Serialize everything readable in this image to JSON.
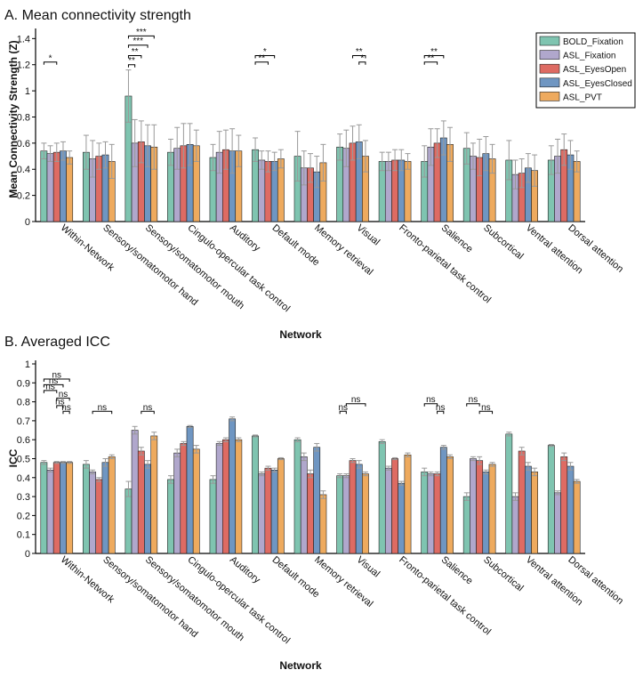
{
  "chart_data": [
    {
      "type": "bar",
      "title": "A. Mean connectivity strength",
      "xlabel": "Network",
      "ylabel": "Mean Connectivity Strength (Z)",
      "ylim": [
        0,
        1.45
      ],
      "yticks": [
        0,
        0.2,
        0.4,
        0.6,
        0.8,
        1,
        1.2,
        1.4
      ],
      "ytick_labels": [
        "0",
        "0.2",
        "0.4",
        "0.6",
        "0.8",
        "1",
        "1.2",
        "1.4"
      ],
      "legend_position": "top-right",
      "categories": [
        "Within-Network",
        "Sensory/somatomotor hand",
        "Sensory/somatomotor mouth",
        "Cingulo-opercular task control",
        "Auditory",
        "Default mode",
        "Memory retrieval",
        "Visual",
        "Fronto-parietal task control",
        "Salience",
        "Subcortical",
        "Ventral attention",
        "Dorsal attention"
      ],
      "series": [
        {
          "name": "BOLD_Fixation",
          "color": "#7fc4b0",
          "values": [
            0.54,
            0.53,
            0.96,
            0.53,
            0.49,
            0.55,
            0.5,
            0.57,
            0.46,
            0.46,
            0.56,
            0.47,
            0.47
          ],
          "errors": [
            0.06,
            0.13,
            0.2,
            0.1,
            0.1,
            0.09,
            0.19,
            0.1,
            0.07,
            0.12,
            0.12,
            0.15,
            0.11
          ]
        },
        {
          "name": "ASL_Fixation",
          "color": "#b0a7cc",
          "values": [
            0.52,
            0.48,
            0.6,
            0.56,
            0.53,
            0.47,
            0.41,
            0.56,
            0.46,
            0.57,
            0.5,
            0.36,
            0.5
          ],
          "errors": [
            0.06,
            0.14,
            0.18,
            0.16,
            0.16,
            0.07,
            0.13,
            0.14,
            0.07,
            0.14,
            0.1,
            0.11,
            0.13
          ]
        },
        {
          "name": "ASL_EyesOpen",
          "color": "#de6b63",
          "values": [
            0.53,
            0.5,
            0.61,
            0.58,
            0.55,
            0.46,
            0.41,
            0.6,
            0.47,
            0.6,
            0.49,
            0.37,
            0.55
          ],
          "errors": [
            0.07,
            0.1,
            0.16,
            0.17,
            0.15,
            0.08,
            0.11,
            0.13,
            0.08,
            0.11,
            0.14,
            0.11,
            0.12
          ]
        },
        {
          "name": "ASL_EyesClosed",
          "color": "#6f96c2",
          "values": [
            0.54,
            0.51,
            0.58,
            0.59,
            0.54,
            0.46,
            0.38,
            0.61,
            0.47,
            0.64,
            0.52,
            0.41,
            0.51
          ],
          "errors": [
            0.07,
            0.1,
            0.16,
            0.16,
            0.17,
            0.07,
            0.12,
            0.13,
            0.08,
            0.13,
            0.13,
            0.11,
            0.11
          ]
        },
        {
          "name": "ASL_PVT",
          "color": "#eeaa5e",
          "values": [
            0.49,
            0.46,
            0.57,
            0.58,
            0.54,
            0.48,
            0.45,
            0.5,
            0.46,
            0.59,
            0.48,
            0.39,
            0.46
          ],
          "errors": [
            0.05,
            0.13,
            0.17,
            0.12,
            0.12,
            0.07,
            0.14,
            0.12,
            0.06,
            0.13,
            0.11,
            0.12,
            0.08
          ]
        }
      ],
      "annotations": [
        {
          "label": "*",
          "category": 0,
          "from_series": 0,
          "to_series": 2,
          "level": 1.22
        },
        {
          "label": "***",
          "category": 2,
          "from_series": 0,
          "to_series": 4,
          "level": 1.42
        },
        {
          "label": "***",
          "category": 2,
          "from_series": 0,
          "to_series": 3,
          "level": 1.35
        },
        {
          "label": "**",
          "category": 2,
          "from_series": 0,
          "to_series": 2,
          "level": 1.27
        },
        {
          "label": "**",
          "category": 2,
          "from_series": 0,
          "to_series": 1,
          "level": 1.2
        },
        {
          "label": "*",
          "category": 5,
          "from_series": 0,
          "to_series": 3,
          "level": 1.27
        },
        {
          "label": "**",
          "category": 5,
          "from_series": 0,
          "to_series": 2,
          "level": 1.22
        },
        {
          "label": "**",
          "category": 7,
          "from_series": 2,
          "to_series": 4,
          "level": 1.27
        },
        {
          "label": "*",
          "category": 7,
          "from_series": 3,
          "to_series": 4,
          "level": 1.22
        },
        {
          "label": "**",
          "category": 9,
          "from_series": 0,
          "to_series": 3,
          "level": 1.27
        },
        {
          "label": "**",
          "category": 9,
          "from_series": 0,
          "to_series": 2,
          "level": 1.22
        }
      ]
    },
    {
      "type": "bar",
      "title": "B. Averaged ICC",
      "xlabel": "Network",
      "ylabel": "ICC",
      "ylim": [
        0,
        1.0
      ],
      "yticks": [
        0,
        0.1,
        0.2,
        0.3,
        0.4,
        0.5,
        0.6,
        0.7,
        0.8,
        0.9,
        1
      ],
      "ytick_labels": [
        "0",
        "0.1",
        "0.2",
        "0.3",
        "0.4",
        "0.5",
        "0.6",
        "0.7",
        "0.8",
        "0.9",
        "1"
      ],
      "categories": [
        "Within-Network",
        "Sensory/somatomotor hand",
        "Sensory/somatomotor mouth",
        "Cingulo-opercular task control",
        "Auditory",
        "Default mode",
        "Memory retrieval",
        "Visual",
        "Fronto-parietal task control",
        "Salience",
        "Subcortical",
        "Ventral attention",
        "Dorsal attention"
      ],
      "series": [
        {
          "name": "BOLD_Fixation",
          "values": [
            0.48,
            0.47,
            0.34,
            0.39,
            0.39,
            0.62,
            0.6,
            0.41,
            0.59,
            0.43,
            0.3,
            0.63,
            0.57
          ],
          "errors": [
            0.01,
            0.02,
            0.04,
            0.02,
            0.02,
            0.005,
            0.01,
            0.01,
            0.01,
            0.02,
            0.02,
            0.01,
            0.005
          ]
        },
        {
          "name": "ASL_Fixation",
          "values": [
            0.44,
            0.43,
            0.65,
            0.53,
            0.58,
            0.42,
            0.51,
            0.41,
            0.45,
            0.42,
            0.5,
            0.3,
            0.32
          ],
          "errors": [
            0.01,
            0.01,
            0.02,
            0.02,
            0.01,
            0.01,
            0.02,
            0.01,
            0.01,
            0.01,
            0.01,
            0.02,
            0.01
          ]
        },
        {
          "name": "ASL_EyesOpen",
          "values": [
            0.48,
            0.39,
            0.54,
            0.58,
            0.6,
            0.45,
            0.42,
            0.49,
            0.5,
            0.42,
            0.49,
            0.54,
            0.51
          ],
          "errors": [
            0.005,
            0.01,
            0.02,
            0.01,
            0.01,
            0.01,
            0.02,
            0.01,
            0.005,
            0.01,
            0.02,
            0.02,
            0.02
          ]
        },
        {
          "name": "ASL_EyesClosed",
          "values": [
            0.48,
            0.48,
            0.47,
            0.67,
            0.71,
            0.44,
            0.56,
            0.47,
            0.37,
            0.56,
            0.43,
            0.46,
            0.46
          ],
          "errors": [
            0.005,
            0.02,
            0.02,
            0.005,
            0.01,
            0.01,
            0.02,
            0.02,
            0.01,
            0.01,
            0.01,
            0.02,
            0.02
          ]
        },
        {
          "name": "ASL_PVT",
          "values": [
            0.48,
            0.51,
            0.62,
            0.55,
            0.6,
            0.5,
            0.31,
            0.42,
            0.52,
            0.51,
            0.47,
            0.43,
            0.38
          ],
          "errors": [
            0.005,
            0.01,
            0.02,
            0.02,
            0.01,
            0.005,
            0.02,
            0.01,
            0.01,
            0.01,
            0.01,
            0.02,
            0.01
          ]
        }
      ],
      "annotations": [
        {
          "label": "ns",
          "category": 0,
          "from_series": 0,
          "to_series": 4,
          "level": 0.92
        },
        {
          "label": "ns",
          "category": 0,
          "from_series": 0,
          "to_series": 3,
          "level": 0.89
        },
        {
          "label": "ns",
          "category": 0,
          "from_series": 0,
          "to_series": 2,
          "level": 0.86
        },
        {
          "label": "ns",
          "category": 0,
          "from_series": 2,
          "to_series": 4,
          "level": 0.82
        },
        {
          "label": "ns",
          "category": 0,
          "from_series": 2,
          "to_series": 3,
          "level": 0.78
        },
        {
          "label": "ns",
          "category": 0,
          "from_series": 3,
          "to_series": 4,
          "level": 0.75
        },
        {
          "label": "ns",
          "category": 1,
          "from_series": 1,
          "to_series": 4,
          "level": 0.75
        },
        {
          "label": "ns",
          "category": 2,
          "from_series": 2,
          "to_series": 4,
          "level": 0.75
        },
        {
          "label": "ns",
          "category": 7,
          "from_series": 1,
          "to_series": 4,
          "level": 0.79
        },
        {
          "label": "ns",
          "category": 7,
          "from_series": 0,
          "to_series": 1,
          "level": 0.75
        },
        {
          "label": "ns",
          "category": 9,
          "from_series": 0,
          "to_series": 2,
          "level": 0.79
        },
        {
          "label": "ns",
          "category": 9,
          "from_series": 2,
          "to_series": 3,
          "level": 0.75
        },
        {
          "label": "ns",
          "category": 10,
          "from_series": 0,
          "to_series": 2,
          "level": 0.79
        },
        {
          "label": "ns",
          "category": 10,
          "from_series": 2,
          "to_series": 4,
          "level": 0.75
        }
      ]
    }
  ]
}
